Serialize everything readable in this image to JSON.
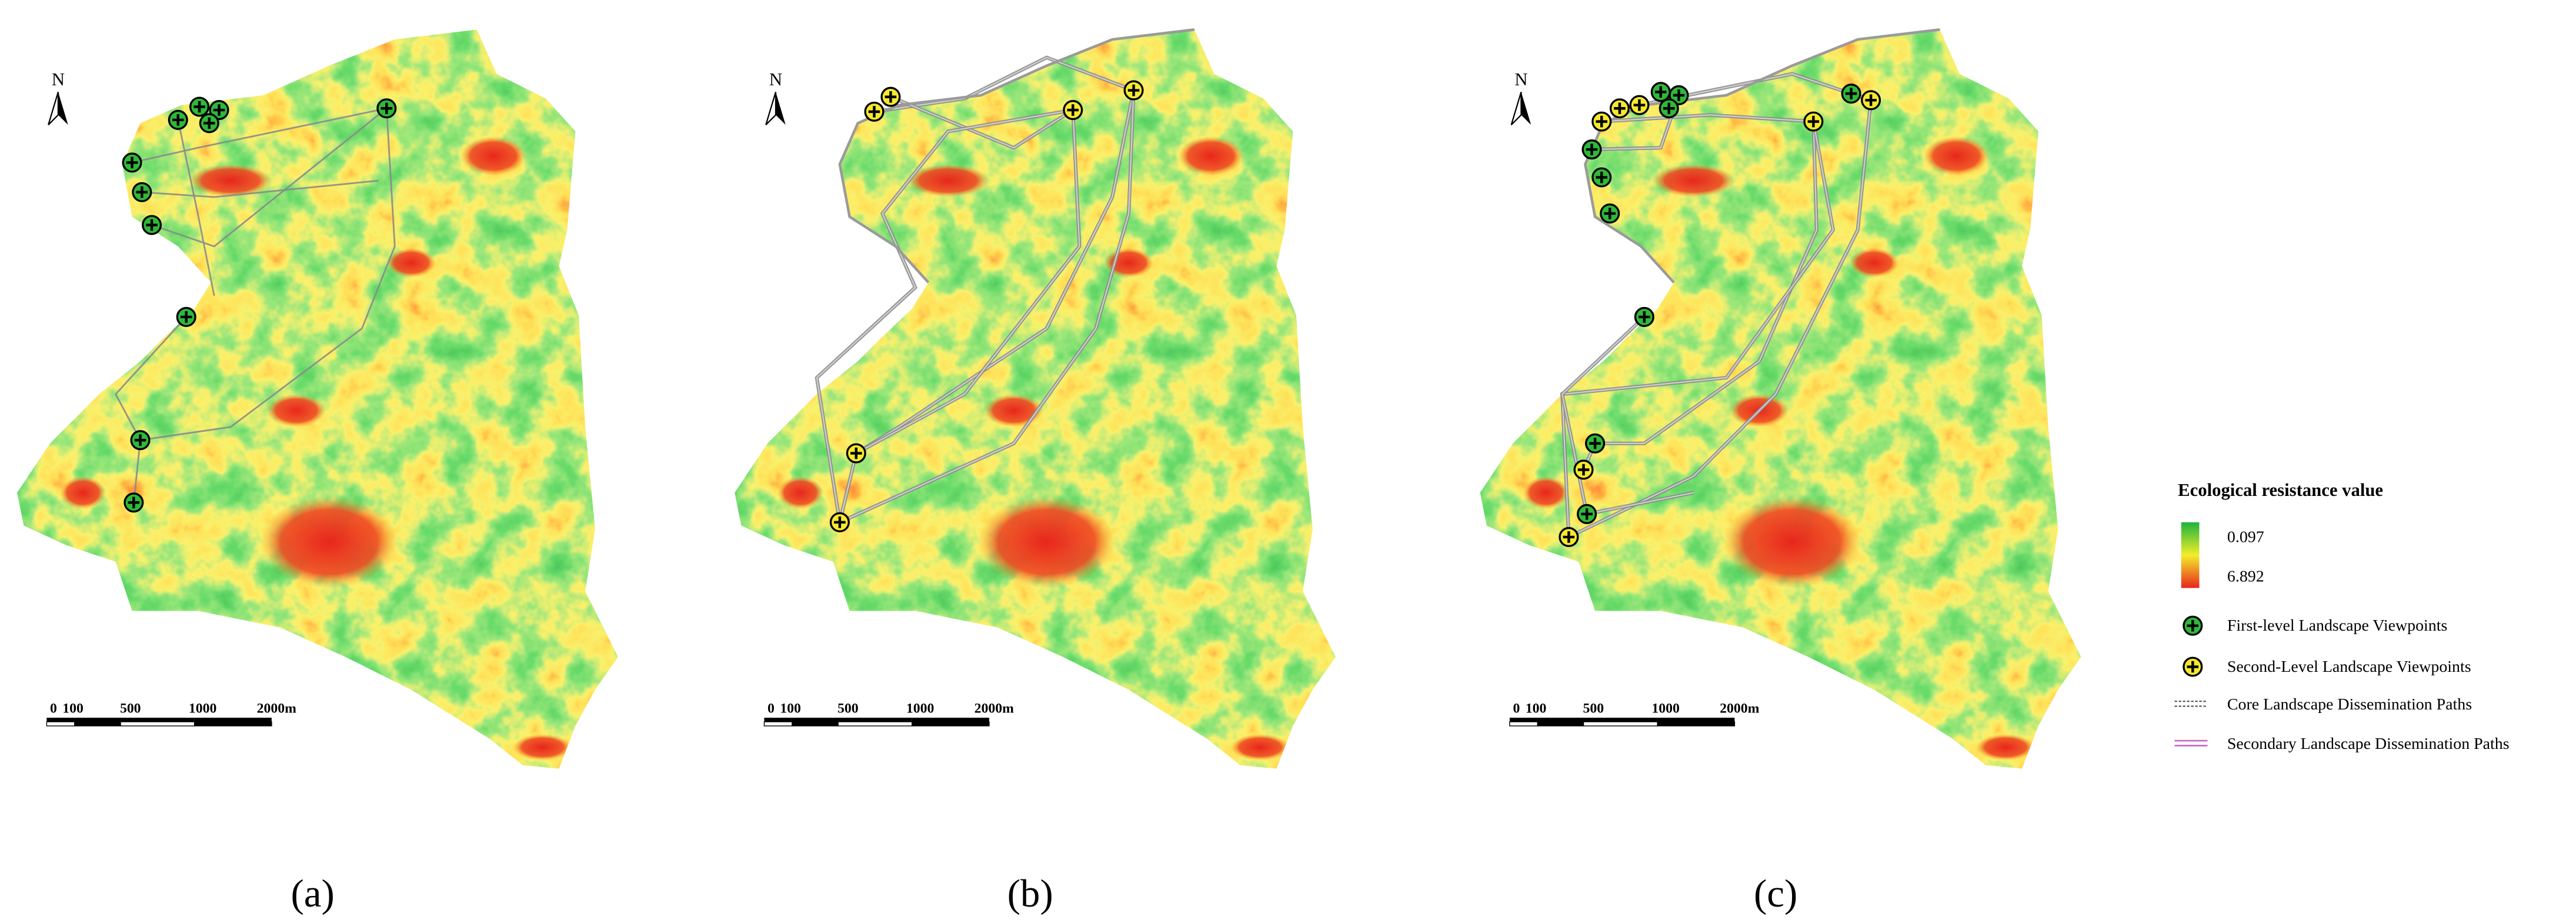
{
  "panels": [
    {
      "label": "(a)",
      "north": "N",
      "scale_labels": [
        "0",
        "100",
        "500",
        "1000",
        "2000m"
      ]
    },
    {
      "label": "(b)",
      "north": "N",
      "scale_labels": [
        "0",
        "100",
        "500",
        "1000",
        "2000m"
      ]
    },
    {
      "label": "(c)",
      "north": "N",
      "scale_labels": [
        "0",
        "100",
        "500",
        "1000",
        "2000m"
      ]
    }
  ],
  "legend": {
    "title": "Ecological resistance value",
    "top_label": "0.097",
    "bottom_label": "6.892",
    "items": [
      "First-level Landscape Viewpoints",
      "Second-Level Landscape Viewpoints",
      "Core Landscape Dissemination Paths",
      "Secondary Landscape Dissemination Paths"
    ]
  }
}
